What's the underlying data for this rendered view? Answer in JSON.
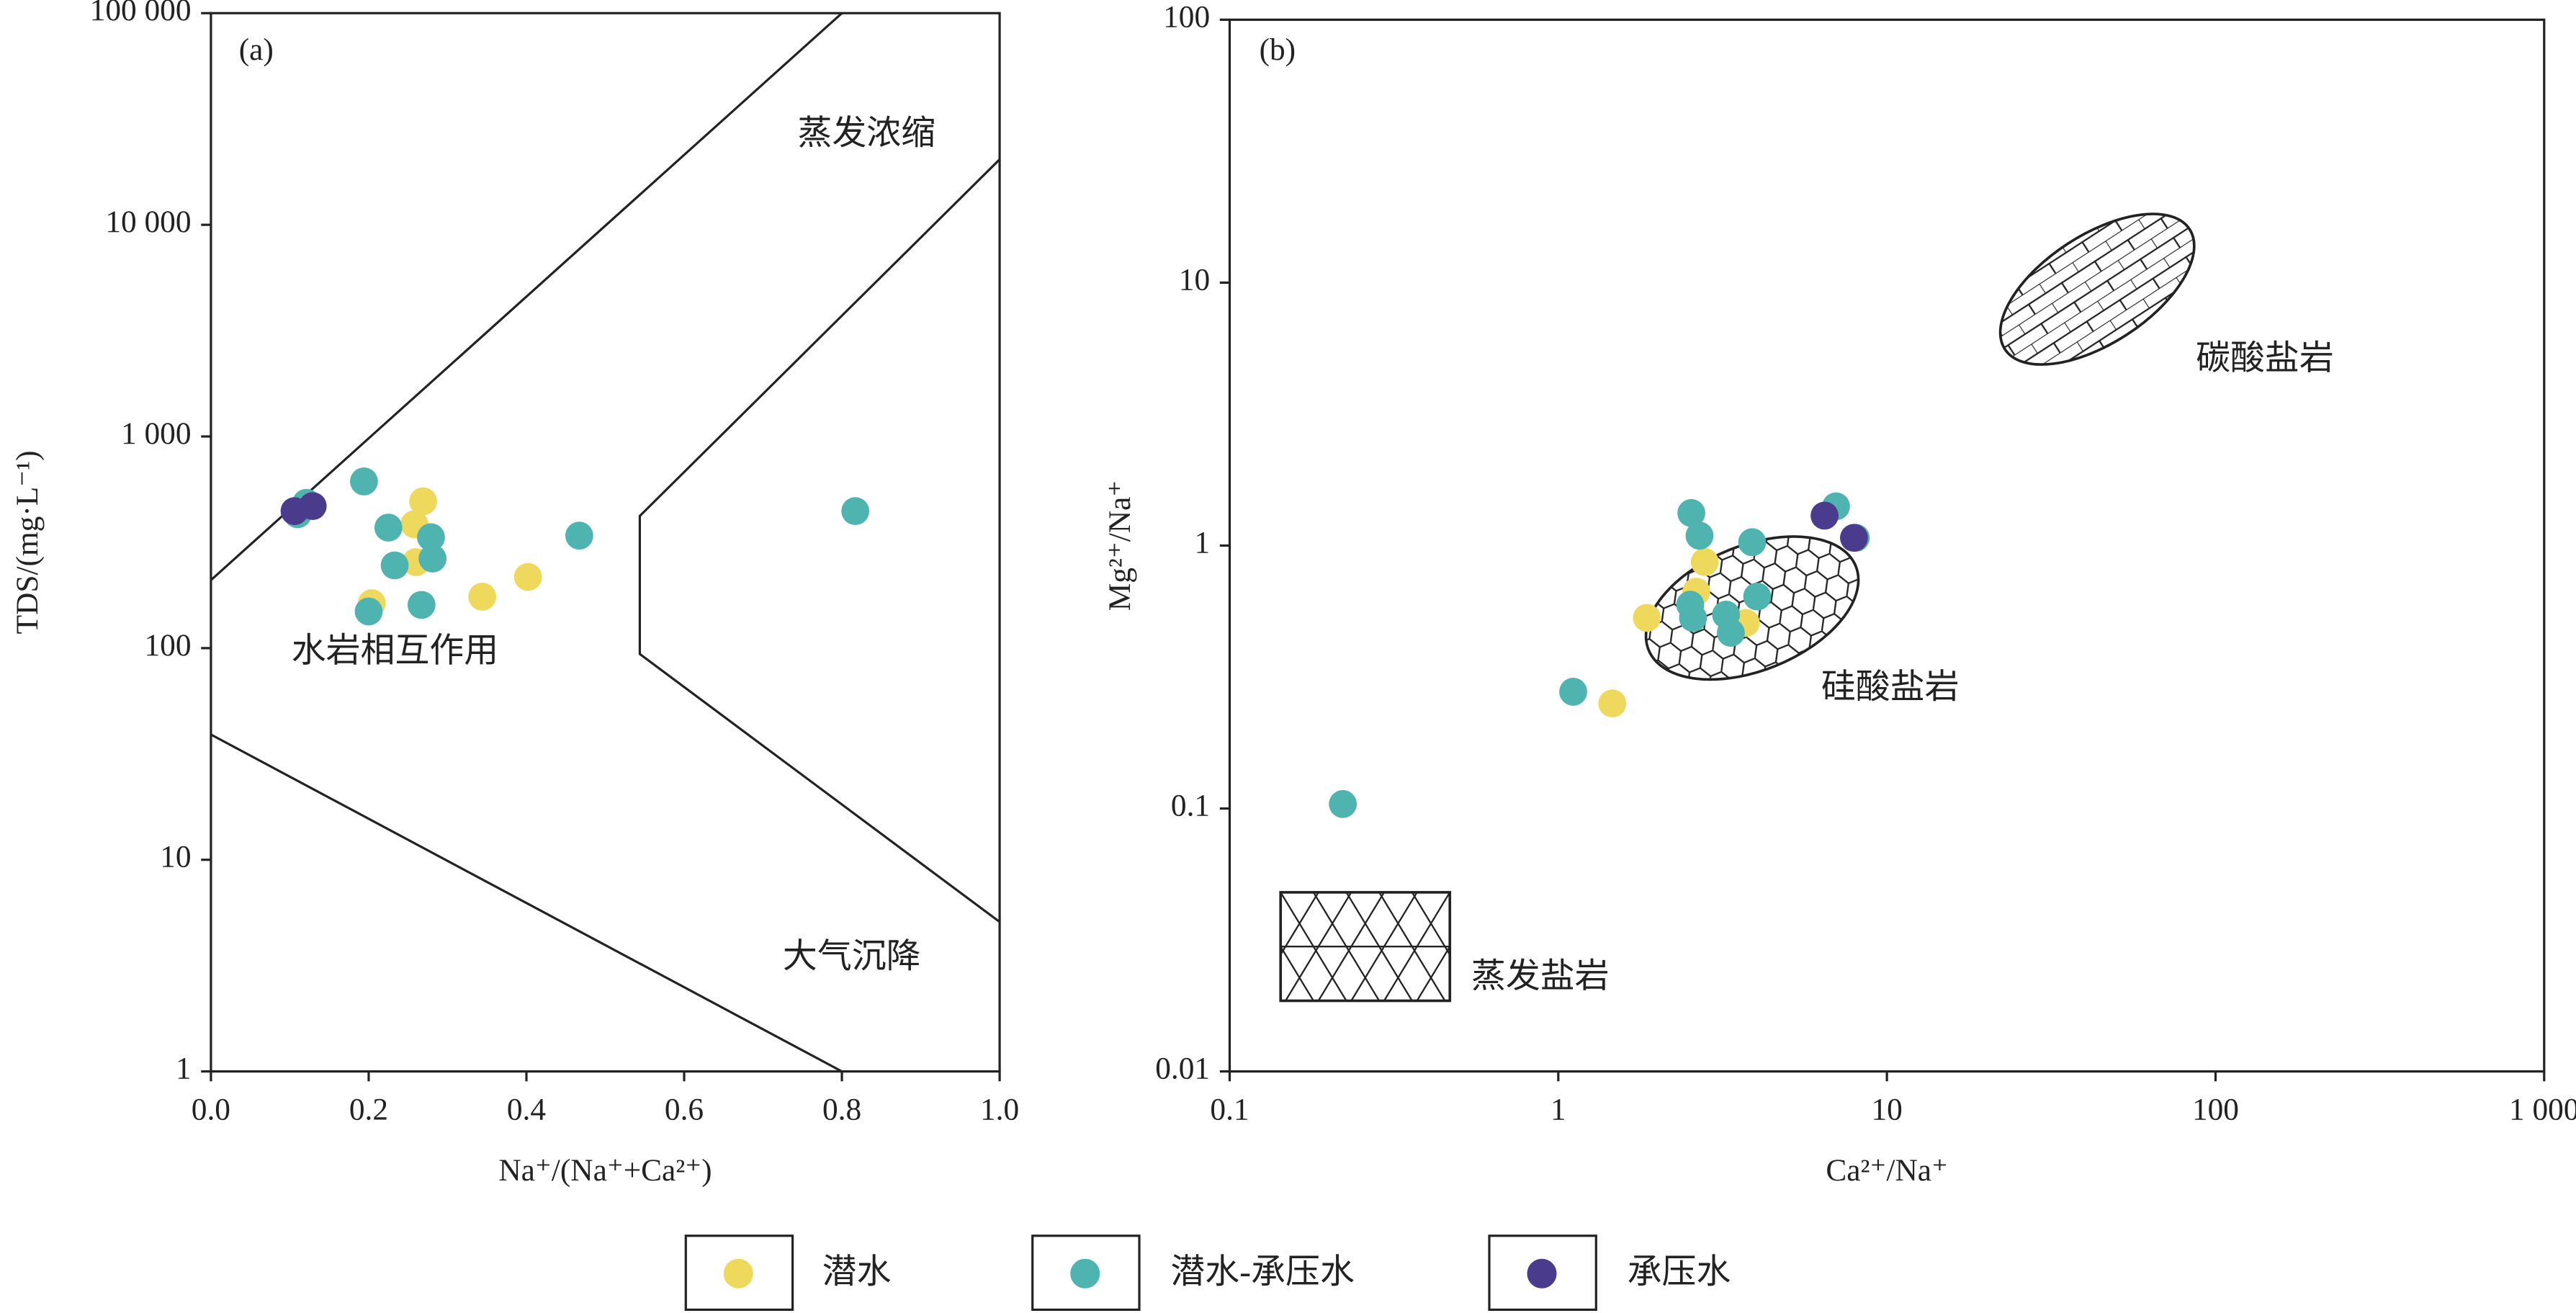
{
  "chart_data": [
    {
      "type": "scatter",
      "label": "(a)",
      "xlabel": "Na⁺/(Na⁺+Ca²⁺)",
      "ylabel": "TDS/(mg·L⁻¹)",
      "xlim": [
        0,
        1
      ],
      "ylim": [
        1,
        100000
      ],
      "ylog": true,
      "xticks": [
        {
          "value": 0,
          "label": "0.0"
        },
        0.2,
        0.4,
        0.6,
        0.8,
        {
          "value": 1,
          "label": "1.0"
        }
      ],
      "yticks": [
        1,
        10,
        100,
        {
          "value": 1000,
          "label": "1 000"
        },
        {
          "value": 10000,
          "label": "10 000"
        },
        {
          "value": 100000,
          "label": "100 000"
        }
      ],
      "annotations": [
        "蒸发浓缩",
        "水岩相互作用",
        "大气沉降"
      ],
      "series": [
        {
          "name": "潜水",
          "color": "#efd95c",
          "x": [
            0.204,
            0.269,
            0.258,
            0.26,
            0.344,
            0.402
          ],
          "values": [
            163,
            494,
            385,
            255,
            175,
            217
          ]
        },
        {
          "name": "潜水-承压水",
          "color": "#4fb4b0",
          "x": [
            0.11,
            0.121,
            0.194,
            0.225,
            0.233,
            0.279,
            0.281,
            0.267,
            0.2,
            0.467,
            0.817
          ],
          "values": [
            429,
            486,
            613,
            371,
            246,
            334,
            265,
            160,
            149,
            340,
            444
          ]
        },
        {
          "name": "承压水",
          "color": "#4b3b8c",
          "x": [
            0.106,
            0.129
          ],
          "values": [
            444,
            469
          ]
        }
      ]
    },
    {
      "type": "scatter",
      "label": "(b)",
      "xlabel": "Ca²⁺/Na⁺",
      "ylabel": "Mg²⁺/Na⁺",
      "xlim": [
        0.1,
        1000
      ],
      "ylim": [
        0.01,
        100
      ],
      "xlog": true,
      "ylog": true,
      "xticks": [
        0.1,
        1,
        10,
        100,
        {
          "value": 1000,
          "label": "1 000"
        }
      ],
      "yticks": [
        0.01,
        0.1,
        1,
        10,
        100
      ],
      "annotations": [
        "碳酸盐岩",
        "硅酸盐岩",
        "蒸发盐岩"
      ],
      "series": [
        {
          "color": "#efd95c",
          "x": [
            1.86,
            1.46,
            2.79,
            2.63,
            3.72
          ],
          "values": [
            0.531,
            0.251,
            0.866,
            0.668,
            0.508
          ]
        },
        {
          "color": "#4fb4b0",
          "x": [
            0.221,
            1.11,
            2.54,
            2.69,
            3.89,
            7.0,
            4.03,
            2.52,
            2.57,
            3.24,
            3.35,
            8.04
          ],
          "values": [
            0.104,
            0.278,
            1.33,
            1.09,
            1.03,
            1.41,
            0.64,
            0.596,
            0.531,
            0.546,
            0.466,
            1.07
          ]
        },
        {
          "color": "#4b3b8c",
          "x": [
            6.46,
            7.94
          ],
          "values": [
            1.3,
            1.07
          ]
        }
      ]
    }
  ]
}
